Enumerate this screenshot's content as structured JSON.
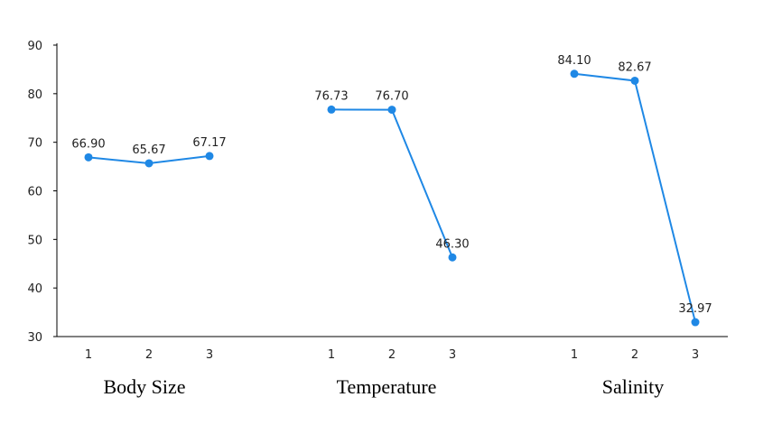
{
  "chart_data": {
    "type": "line",
    "ylim": [
      30,
      90
    ],
    "yticks": [
      30,
      40,
      50,
      60,
      70,
      80,
      90
    ],
    "grid": false,
    "color": "#1f88e5",
    "groups": [
      {
        "name": "Body Size",
        "x": [
          "1",
          "2",
          "3"
        ],
        "values": [
          66.9,
          65.67,
          67.17
        ],
        "labels": [
          "66.90",
          "65.67",
          "67.17"
        ]
      },
      {
        "name": "Temperature",
        "x": [
          "1",
          "2",
          "3"
        ],
        "values": [
          76.73,
          76.7,
          46.3
        ],
        "labels": [
          "76.73",
          "76.70",
          "46.30"
        ]
      },
      {
        "name": "Salinity",
        "x": [
          "1",
          "2",
          "3"
        ],
        "values": [
          84.1,
          82.67,
          32.97
        ],
        "labels": [
          "84.10",
          "82.67",
          "32.97"
        ]
      }
    ]
  }
}
